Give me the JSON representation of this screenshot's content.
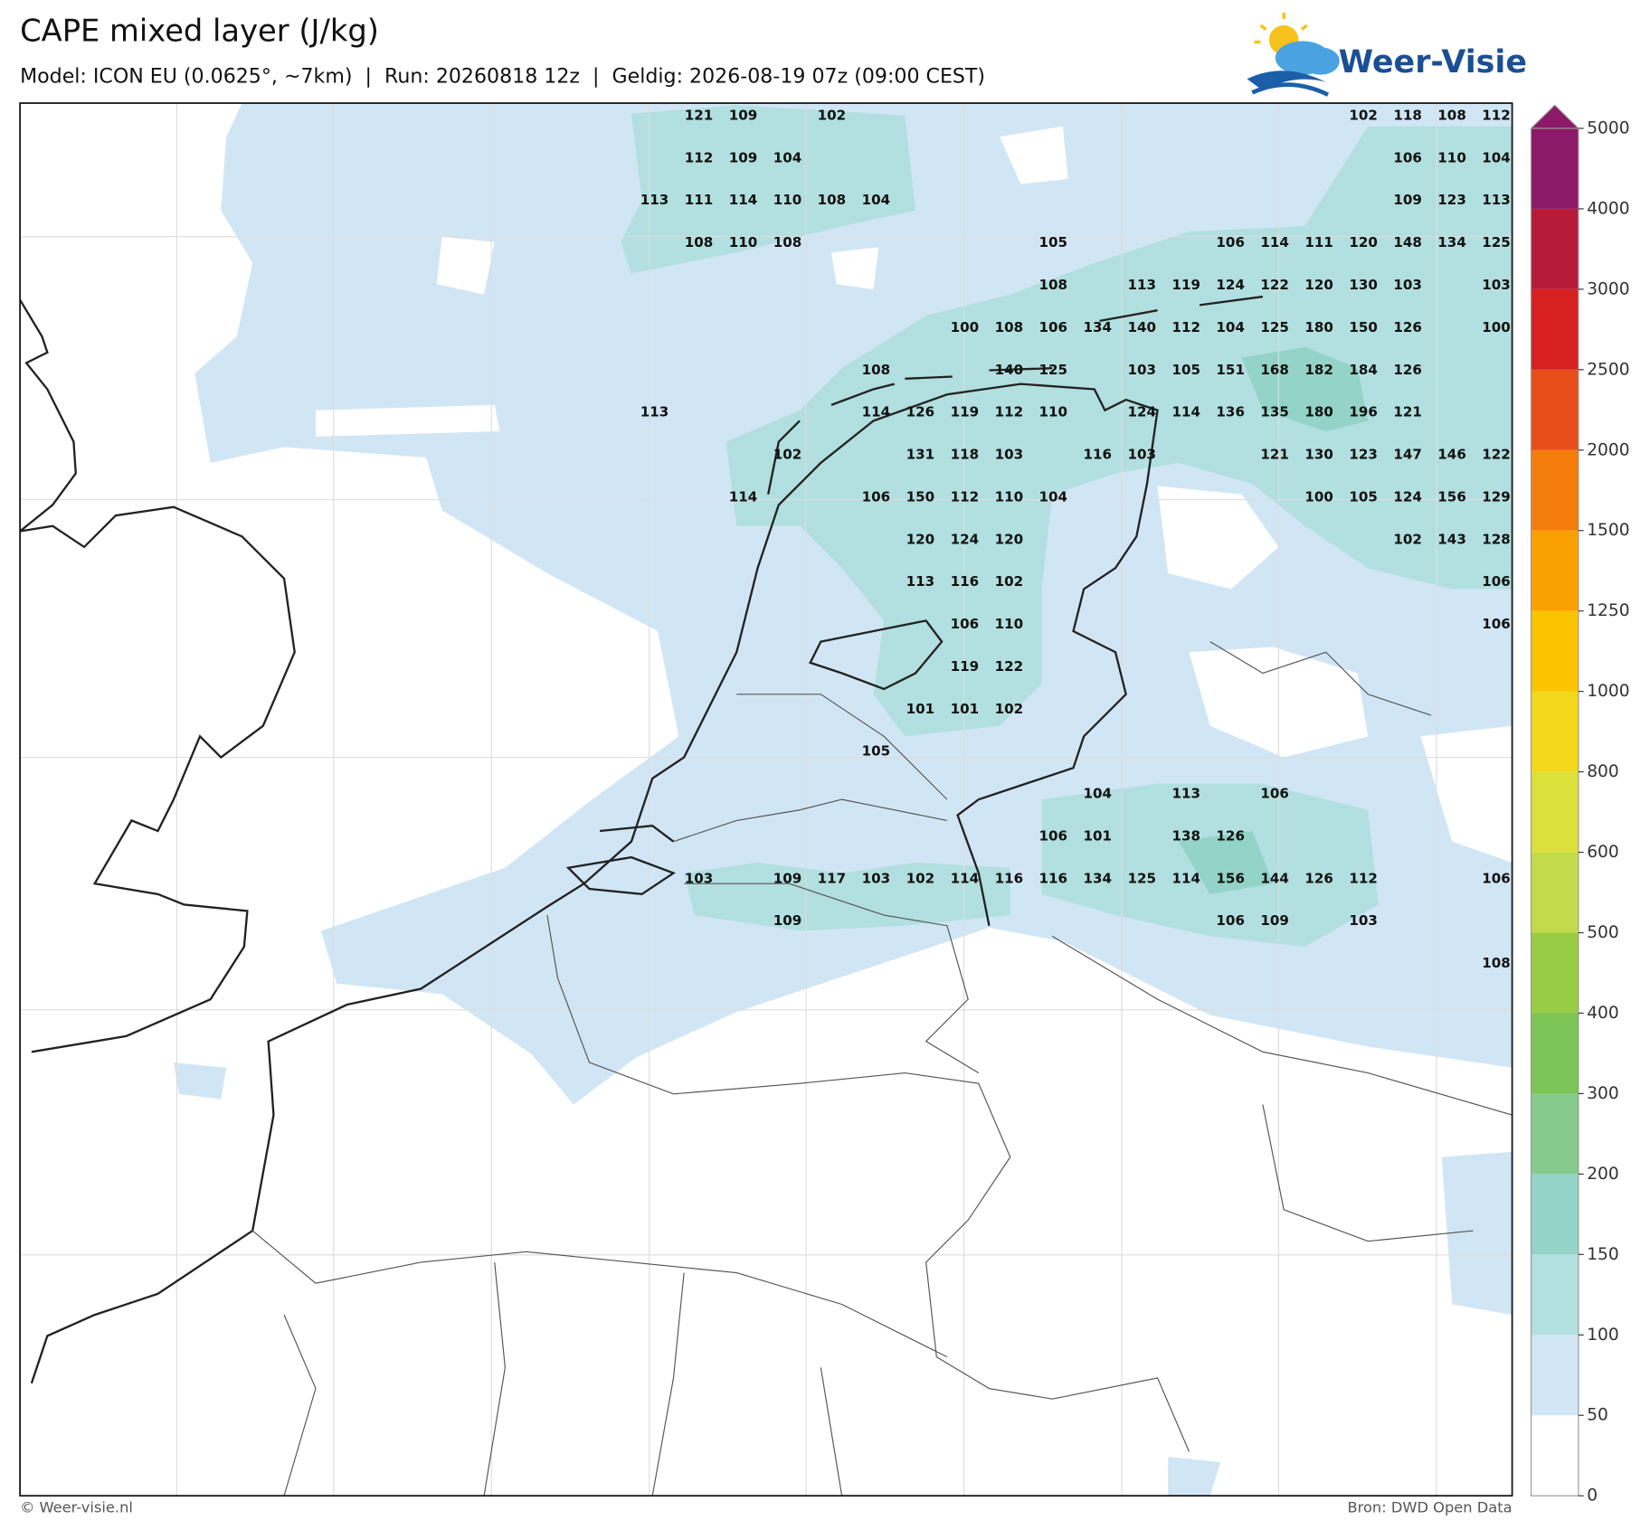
{
  "header": {
    "title": "CAPE mixed layer (J/kg)",
    "subtitle": "Model: ICON EU (0.0625°, ~7km)  |  Run: 20260818 12z  |  Geldig: 2026-08-19 07z (09:00 CEST)"
  },
  "logo": {
    "text": "Weer-Visie"
  },
  "footer": {
    "left": "© Weer-visie.nl",
    "right": "Bron: DWD Open Data"
  },
  "colorbar": {
    "levels": [
      0,
      50,
      100,
      150,
      200,
      300,
      400,
      500,
      600,
      800,
      1000,
      1250,
      1500,
      2000,
      2500,
      3000,
      4000,
      5000
    ],
    "colors": [
      "#ffffff",
      "#d1e6f5",
      "#b2dfdf",
      "#93d3c8",
      "#86cb8c",
      "#7cc456",
      "#99cc45",
      "#c3da4a",
      "#dde03b",
      "#f3d81c",
      "#fbc400",
      "#f9a100",
      "#f47c0b",
      "#e84e19",
      "#d72121",
      "#b61c3a",
      "#8c1a68"
    ]
  },
  "labels": {
    "rows": [
      [
        null,
        121,
        109,
        null,
        102,
        null,
        null,
        null,
        null,
        null,
        null,
        null,
        null,
        null,
        null,
        null,
        102,
        118,
        108,
        112
      ],
      [
        null,
        112,
        109,
        104,
        null,
        null,
        null,
        null,
        null,
        null,
        null,
        null,
        null,
        null,
        null,
        null,
        null,
        106,
        110,
        104
      ],
      [
        113,
        111,
        114,
        110,
        108,
        104,
        null,
        null,
        null,
        null,
        null,
        null,
        null,
        null,
        null,
        null,
        null,
        109,
        123,
        113
      ],
      [
        null,
        108,
        110,
        108,
        null,
        null,
        null,
        null,
        null,
        105,
        null,
        null,
        null,
        106,
        114,
        111,
        120,
        148,
        134,
        125
      ],
      [
        null,
        null,
        null,
        null,
        null,
        null,
        null,
        null,
        null,
        108,
        null,
        113,
        119,
        124,
        122,
        120,
        130,
        103,
        null,
        103
      ],
      [
        null,
        null,
        null,
        null,
        null,
        null,
        null,
        100,
        108,
        106,
        134,
        140,
        112,
        104,
        125,
        180,
        150,
        126,
        null,
        100
      ],
      [
        null,
        null,
        null,
        null,
        null,
        108,
        null,
        null,
        140,
        125,
        null,
        103,
        105,
        151,
        168,
        182,
        184,
        126,
        null,
        null
      ],
      [
        113,
        null,
        null,
        null,
        null,
        114,
        126,
        119,
        112,
        110,
        null,
        124,
        114,
        136,
        135,
        180,
        196,
        121,
        null,
        null
      ],
      [
        null,
        null,
        null,
        102,
        null,
        null,
        131,
        118,
        103,
        null,
        116,
        103,
        null,
        null,
        121,
        130,
        123,
        147,
        146,
        122
      ],
      [
        null,
        null,
        114,
        null,
        null,
        106,
        150,
        112,
        110,
        104,
        null,
        null,
        null,
        null,
        null,
        100,
        105,
        124,
        156,
        129
      ],
      [
        null,
        null,
        null,
        null,
        null,
        null,
        120,
        124,
        120,
        null,
        null,
        null,
        null,
        null,
        null,
        null,
        null,
        102,
        143,
        128
      ],
      [
        null,
        null,
        null,
        null,
        null,
        null,
        113,
        116,
        102,
        null,
        null,
        null,
        null,
        null,
        null,
        null,
        null,
        null,
        null,
        106
      ],
      [
        null,
        null,
        null,
        null,
        null,
        null,
        null,
        106,
        110,
        null,
        null,
        null,
        null,
        null,
        null,
        null,
        null,
        null,
        null,
        106
      ],
      [
        null,
        null,
        null,
        null,
        null,
        null,
        null,
        119,
        122,
        null,
        null,
        null,
        null,
        null,
        null,
        null,
        null,
        null,
        null,
        null
      ],
      [
        null,
        null,
        null,
        null,
        null,
        null,
        101,
        101,
        102,
        null,
        null,
        null,
        null,
        null,
        null,
        null,
        null,
        null,
        null,
        null
      ],
      [
        null,
        null,
        null,
        null,
        null,
        105,
        null,
        null,
        null,
        null,
        null,
        null,
        null,
        null,
        null,
        null,
        null,
        null,
        null,
        null
      ],
      [
        null,
        null,
        null,
        null,
        null,
        null,
        null,
        null,
        null,
        null,
        104,
        null,
        113,
        null,
        106,
        null,
        null,
        null,
        null,
        null
      ],
      [
        null,
        null,
        null,
        null,
        null,
        null,
        null,
        null,
        null,
        106,
        101,
        null,
        138,
        126,
        null,
        null,
        null,
        null,
        null,
        null
      ],
      [
        null,
        103,
        null,
        109,
        117,
        103,
        102,
        114,
        116,
        116,
        134,
        125,
        114,
        156,
        144,
        126,
        112,
        null,
        null,
        106
      ],
      [
        null,
        null,
        null,
        109,
        null,
        null,
        null,
        null,
        null,
        null,
        null,
        null,
        null,
        106,
        109,
        null,
        103,
        null,
        null,
        null
      ],
      [
        null,
        null,
        null,
        null,
        null,
        null,
        null,
        null,
        null,
        null,
        null,
        null,
        null,
        null,
        null,
        null,
        null,
        null,
        null,
        108
      ]
    ]
  }
}
